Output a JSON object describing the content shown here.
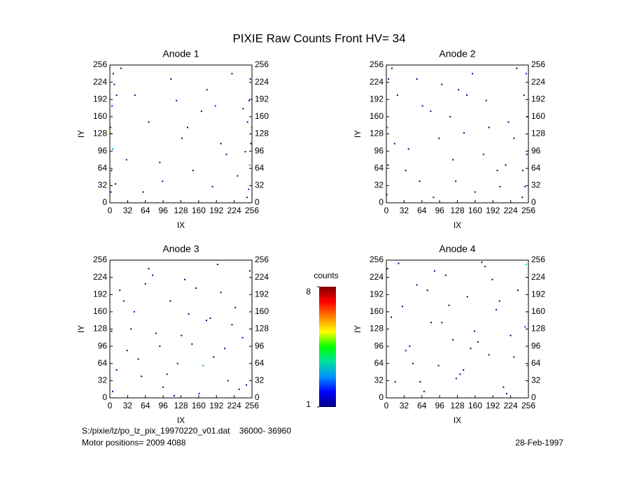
{
  "title": "PIXIE Raw Counts Front HV= 34",
  "chart_data": [
    {
      "type": "heatmap",
      "title": "Anode 1",
      "xlabel": "IX",
      "ylabel": "IY",
      "xlim": [
        0,
        256
      ],
      "ylim": [
        0,
        256
      ],
      "xticks": [
        0,
        32,
        64,
        96,
        128,
        160,
        192,
        224,
        256
      ],
      "yticks": [
        0,
        32,
        64,
        96,
        128,
        160,
        192,
        224,
        256
      ],
      "x": [
        2,
        3,
        5,
        1,
        4,
        8,
        6,
        2,
        10,
        12,
        250,
        252,
        254,
        248,
        251,
        253,
        255,
        247,
        244,
        240,
        30,
        45,
        70,
        95,
        110,
        130,
        150,
        165,
        175,
        185,
        190,
        200,
        210,
        220,
        230,
        20,
        60,
        90,
        120,
        140
      ],
      "y": [
        20,
        60,
        100,
        140,
        180,
        220,
        240,
        130,
        35,
        200,
        25,
        70,
        110,
        150,
        190,
        230,
        140,
        10,
        95,
        175,
        80,
        200,
        150,
        40,
        230,
        120,
        60,
        170,
        210,
        30,
        180,
        110,
        90,
        240,
        50,
        250,
        20,
        75,
        190,
        140
      ],
      "values": [
        2,
        1,
        3,
        1,
        2,
        1,
        1,
        5,
        1,
        1,
        2,
        3,
        1,
        1,
        2,
        1,
        6,
        1,
        1,
        1,
        1,
        1,
        1,
        1,
        1,
        1,
        1,
        1,
        1,
        1,
        2,
        1,
        1,
        1,
        1,
        1,
        1,
        1,
        1,
        1
      ]
    },
    {
      "type": "heatmap",
      "title": "Anode 2",
      "xlabel": "IX",
      "ylabel": "IY",
      "xlim": [
        0,
        256
      ],
      "ylim": [
        0,
        256
      ],
      "xticks": [
        0,
        32,
        64,
        96,
        128,
        160,
        192,
        224,
        256
      ],
      "yticks": [
        0,
        32,
        64,
        96,
        128,
        160,
        192,
        224,
        256
      ],
      "x": [
        1,
        3,
        2,
        4,
        250,
        253,
        255,
        248,
        252,
        246,
        20,
        40,
        60,
        80,
        100,
        120,
        140,
        160,
        180,
        200,
        220,
        235,
        15,
        55,
        85,
        115,
        145,
        175,
        205,
        230,
        35,
        65,
        95,
        125,
        155,
        185,
        215,
        245,
        10,
        130
      ],
      "y": [
        15,
        70,
        140,
        230,
        30,
        90,
        160,
        200,
        240,
        60,
        200,
        100,
        40,
        170,
        220,
        80,
        130,
        20,
        190,
        60,
        150,
        250,
        110,
        230,
        10,
        160,
        200,
        90,
        30,
        120,
        60,
        180,
        120,
        40,
        240,
        140,
        70,
        10,
        250,
        210
      ],
      "values": [
        2,
        1,
        3,
        1,
        2,
        1,
        1,
        1,
        2,
        1,
        1,
        1,
        1,
        1,
        1,
        1,
        1,
        1,
        1,
        1,
        1,
        1,
        1,
        1,
        1,
        1,
        1,
        1,
        1,
        1,
        1,
        1,
        1,
        1,
        1,
        1,
        1,
        1,
        1,
        1
      ]
    },
    {
      "type": "heatmap",
      "title": "Anode 3",
      "xlabel": "IX",
      "ylabel": "IY",
      "xlim": [
        0,
        256
      ],
      "ylim": [
        0,
        256
      ],
      "xticks": [
        0,
        32,
        64,
        96,
        128,
        160,
        192,
        224,
        256
      ],
      "yticks": [
        0,
        32,
        64,
        96,
        128,
        160,
        192,
        224,
        256
      ],
      "x": [
        5,
        18,
        31,
        44,
        57,
        70,
        83,
        96,
        109,
        122,
        135,
        148,
        161,
        174,
        187,
        200,
        213,
        226,
        239,
        252,
        12,
        38,
        64,
        90,
        116,
        142,
        168,
        194,
        220,
        246,
        25,
        51,
        77,
        103,
        129,
        155,
        181,
        207,
        233,
        3
      ],
      "y": [
        12,
        200,
        88,
        160,
        40,
        240,
        120,
        20,
        180,
        64,
        220,
        100,
        8,
        144,
        76,
        196,
        32,
        168,
        112,
        236,
        52,
        128,
        212,
        96,
        4,
        156,
        60,
        248,
        136,
        24,
        180,
        72,
        228,
        44,
        116,
        204,
        148,
        92,
        16,
        124
      ],
      "values": [
        1,
        1,
        1,
        2,
        1,
        1,
        1,
        1,
        1,
        1,
        1,
        1,
        2,
        1,
        1,
        1,
        1,
        1,
        1,
        1,
        1,
        1,
        1,
        1,
        1,
        1,
        3,
        1,
        1,
        1,
        1,
        1,
        1,
        1,
        1,
        1,
        1,
        1,
        1,
        1
      ]
    },
    {
      "type": "heatmap",
      "title": "Anode 4",
      "xlabel": "IX",
      "ylabel": "IY",
      "xlim": [
        0,
        256
      ],
      "ylim": [
        0,
        256
      ],
      "xticks": [
        0,
        32,
        64,
        96,
        128,
        160,
        192,
        224,
        256
      ],
      "yticks": [
        0,
        32,
        64,
        96,
        128,
        160,
        192,
        224,
        256
      ],
      "x": [
        2,
        16,
        29,
        42,
        55,
        68,
        81,
        94,
        107,
        120,
        133,
        146,
        159,
        172,
        185,
        198,
        211,
        224,
        237,
        254,
        9,
        35,
        61,
        87,
        113,
        139,
        165,
        191,
        217,
        250,
        22,
        48,
        74,
        100,
        126,
        152,
        178,
        204,
        230,
        252
      ],
      "y": [
        240,
        30,
        170,
        96,
        210,
        12,
        140,
        60,
        228,
        108,
        44,
        188,
        124,
        252,
        80,
        164,
        20,
        116,
        200,
        60,
        150,
        88,
        30,
        236,
        172,
        52,
        104,
        220,
        8,
        132,
        250,
        64,
        200,
        140,
        36,
        92,
        244,
        180,
        76,
        248
      ],
      "values": [
        1,
        1,
        1,
        1,
        1,
        1,
        1,
        1,
        1,
        1,
        1,
        1,
        1,
        1,
        1,
        1,
        1,
        1,
        1,
        3,
        1,
        2,
        1,
        1,
        1,
        1,
        1,
        1,
        1,
        2,
        1,
        1,
        1,
        1,
        1,
        1,
        1,
        1,
        1,
        4
      ]
    }
  ],
  "colorbar": {
    "label": "counts",
    "lim": [
      1,
      8
    ],
    "ticks": [
      1,
      8
    ],
    "colors": [
      "#000080",
      "#0000ff",
      "#0090ff",
      "#00e0a0",
      "#00ff00",
      "#ffff00",
      "#ff8000",
      "#ff0000",
      "#800000"
    ]
  },
  "footer": {
    "file": "S:/pixie/lz/po_lz_pix_19970220_v01.dat    36000- 36960",
    "motor": "Motor positions= 2009 4088",
    "date": "28-Feb-1997"
  }
}
